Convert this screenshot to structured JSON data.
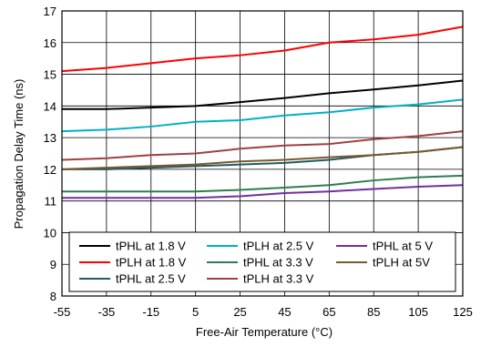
{
  "chart_data": {
    "type": "line",
    "xlabel": "Free-Air Temperature (°C)",
    "ylabel": "Propagation Delay Time (ns)",
    "x": [
      -55,
      -35,
      -15,
      5,
      25,
      45,
      65,
      85,
      105,
      125
    ],
    "x_tick_labels": [
      "-55",
      "-35",
      "-15",
      "5",
      "25",
      "45",
      "65",
      "85",
      "105",
      "125"
    ],
    "ylim": [
      8,
      17
    ],
    "y_ticks": [
      8,
      9,
      10,
      11,
      12,
      13,
      14,
      15,
      16,
      17
    ],
    "grid": true,
    "legend_placement": "bottom",
    "series": [
      {
        "name": "tPHL at 1.8 V",
        "color": "#000000",
        "values": [
          13.9,
          13.9,
          13.95,
          14.0,
          14.12,
          14.25,
          14.4,
          14.52,
          14.65,
          14.8
        ]
      },
      {
        "name": "tPLH at 1.8 V",
        "color": "#ff0000",
        "values": [
          15.1,
          15.2,
          15.35,
          15.5,
          15.6,
          15.75,
          16.0,
          16.1,
          16.25,
          16.5
        ]
      },
      {
        "name": "tPHL at 2.5 V",
        "color": "#215968",
        "values": [
          12.0,
          12.0,
          12.05,
          12.1,
          12.15,
          12.2,
          12.3,
          12.45,
          12.55,
          12.7
        ]
      },
      {
        "name": "tPLH at 2.5 V",
        "color": "#00b0c8",
        "values": [
          13.2,
          13.25,
          13.35,
          13.5,
          13.55,
          13.7,
          13.8,
          13.95,
          14.05,
          14.2
        ]
      },
      {
        "name": "tPHL at 3.3 V",
        "color": "#2e7d50",
        "values": [
          11.3,
          11.3,
          11.3,
          11.3,
          11.35,
          11.42,
          11.5,
          11.65,
          11.75,
          11.8
        ]
      },
      {
        "name": "tPLH at 3.3 V",
        "color": "#a04040",
        "values": [
          12.3,
          12.35,
          12.45,
          12.5,
          12.65,
          12.75,
          12.8,
          12.95,
          13.05,
          13.2
        ]
      },
      {
        "name": "tPHL at 5 V",
        "color": "#7030a0",
        "values": [
          11.1,
          11.1,
          11.1,
          11.1,
          11.15,
          11.25,
          11.3,
          11.38,
          11.45,
          11.5
        ]
      },
      {
        "name": "tPLH at 5V",
        "color": "#7a5a2a",
        "values": [
          12.0,
          12.05,
          12.1,
          12.15,
          12.25,
          12.3,
          12.38,
          12.45,
          12.55,
          12.7
        ]
      }
    ],
    "legend_order": [
      "tPHL at 1.8 V",
      "tPLH at 2.5 V",
      "tPHL at 5 V",
      "tPLH at 1.8 V",
      "tPHL at 3.3 V",
      "tPLH at 5V",
      "tPHL at 2.5 V",
      "tPLH at 3.3 V"
    ]
  }
}
